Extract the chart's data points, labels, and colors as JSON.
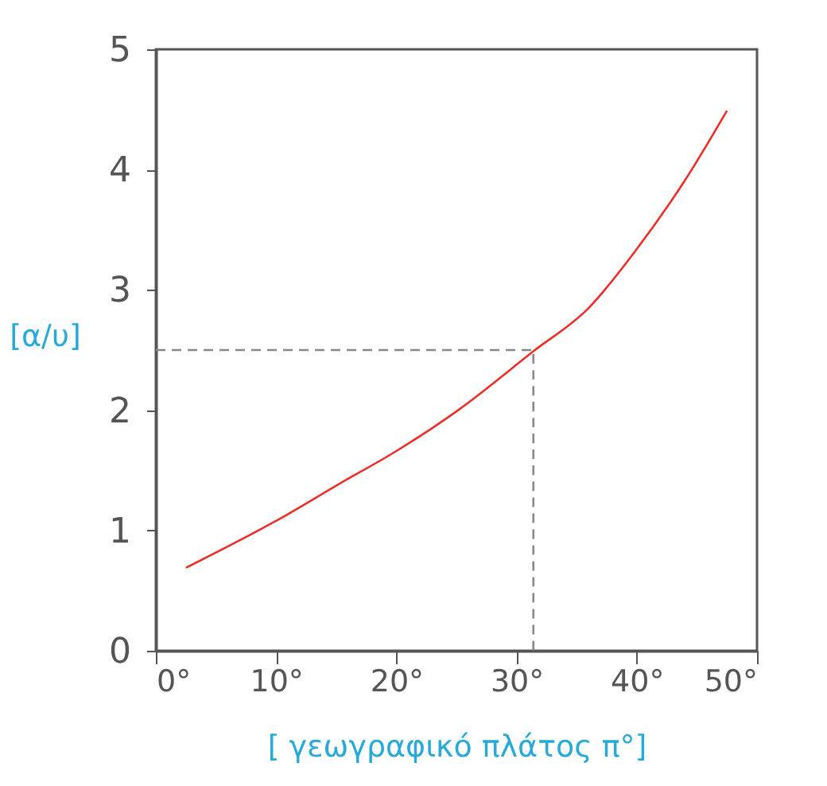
{
  "chart_data": {
    "type": "line",
    "xlabel": "[ γεωγραφικό πλάτος π°]",
    "ylabel": "[α/υ]",
    "xlim": [
      0,
      50
    ],
    "xticks": [
      {
        "value": 0,
        "label": "0°"
      },
      {
        "value": 10,
        "label": "10°"
      },
      {
        "value": 20,
        "label": "20°"
      },
      {
        "value": 30,
        "label": "30°"
      },
      {
        "value": 40,
        "label": "40°"
      },
      {
        "value": 50,
        "label": "50°"
      }
    ],
    "ylim": [
      0,
      5
    ],
    "yticks": [
      0,
      1,
      2,
      3,
      4,
      5
    ],
    "grid": false,
    "series": [
      {
        "color": "#e8302a",
        "line_style": "solid",
        "x": [
          2.5,
          10,
          15.3,
          20,
          25,
          31.4,
          36,
          40,
          44,
          47.5
        ],
        "values": [
          0.69,
          1.08,
          1.39,
          1.66,
          1.99,
          2.49,
          2.85,
          3.34,
          3.91,
          4.49
        ]
      },
      {
        "color": "#888888",
        "line_style": "dashed",
        "x": [
          0,
          31.4,
          31.4
        ],
        "values": [
          2.5,
          2.5,
          0
        ]
      }
    ]
  }
}
